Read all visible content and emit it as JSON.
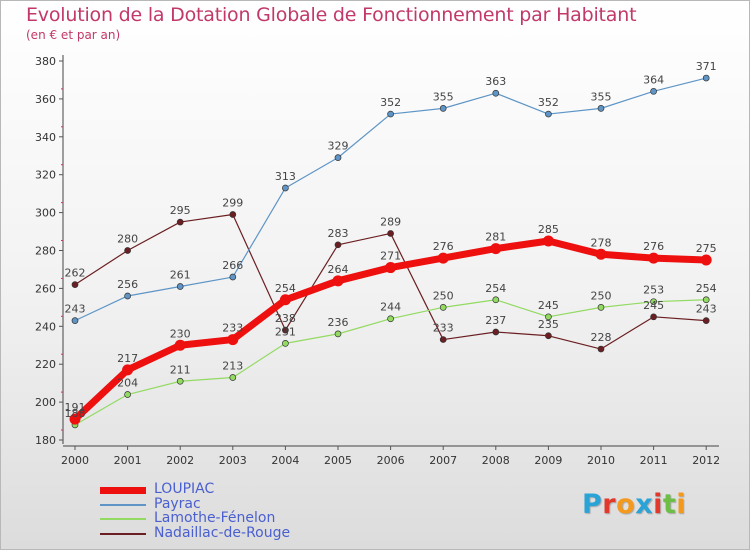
{
  "title": "Evolution de la Dotation Globale de Fonctionnement par Habitant",
  "subtitle": "(en € et par an)",
  "logo": {
    "text": "Proxiti",
    "letters": [
      {
        "ch": "P",
        "color": "#2aa3d6"
      },
      {
        "ch": "r",
        "color": "#e2392c"
      },
      {
        "ch": "o",
        "color": "#f39a1e"
      },
      {
        "ch": "x",
        "color": "#2aa3d6"
      },
      {
        "ch": "i",
        "color": "#e2392c"
      },
      {
        "ch": "t",
        "color": "#6dbe45"
      },
      {
        "ch": "i",
        "color": "#f39a1e"
      }
    ]
  },
  "chart_data": {
    "type": "line",
    "x": [
      2000,
      2001,
      2002,
      2003,
      2004,
      2005,
      2006,
      2007,
      2008,
      2009,
      2010,
      2011,
      2012
    ],
    "ylim": [
      180,
      380
    ],
    "yticks": [
      180,
      200,
      220,
      240,
      260,
      280,
      300,
      320,
      340,
      360,
      380
    ],
    "grid": false,
    "legend_position": "bottom-left",
    "series": [
      {
        "name": "Nadaillac-de-Rouge",
        "color": "#6b1f22",
        "values": [
          262,
          280,
          295,
          299,
          238,
          283,
          289,
          233,
          237,
          235,
          228,
          245,
          243
        ]
      },
      {
        "name": "Lamothe-Fénelon",
        "color": "#92da62",
        "values": [
          188,
          204,
          211,
          213,
          231,
          236,
          244,
          250,
          254,
          245,
          250,
          253,
          254
        ]
      },
      {
        "name": "Payrac",
        "color": "#5e95c6",
        "values": [
          243,
          256,
          261,
          266,
          313,
          329,
          352,
          355,
          363,
          352,
          355,
          364,
          371
        ]
      },
      {
        "name": "LOUPIAC",
        "color": "#ee0f0f",
        "values": [
          191,
          217,
          230,
          233,
          254,
          264,
          271,
          276,
          281,
          285,
          278,
          276,
          275
        ]
      }
    ]
  }
}
